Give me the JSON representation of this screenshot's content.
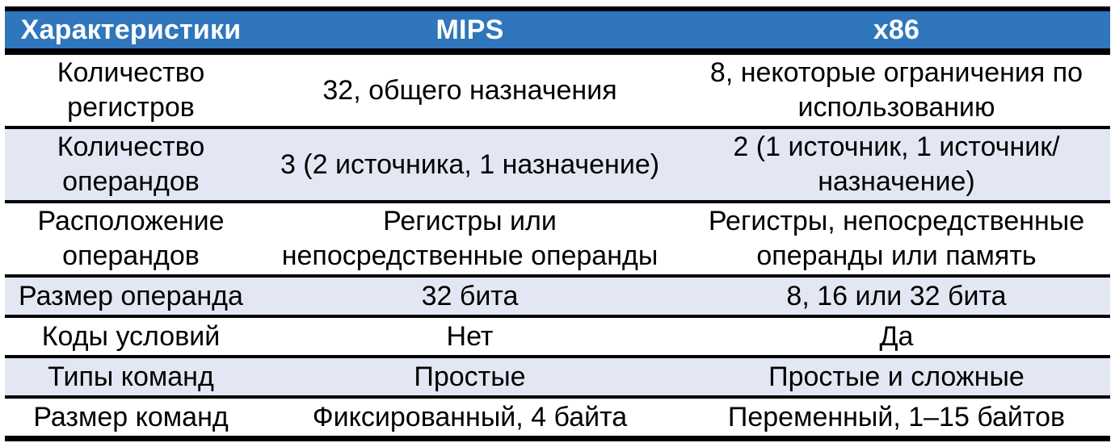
{
  "table": {
    "headers": [
      "Характеристики",
      "MIPS",
      "x86"
    ],
    "rows": [
      [
        "Количество регистров",
        "32, общего назначения",
        "8, некоторые ограничения по использованию"
      ],
      [
        "Количество операндов",
        "3 (2 источника, 1 назначение)",
        "2 (1 источник, 1 источник/назначение)"
      ],
      [
        "Расположение операндов",
        "Регистры или непосредственные операнды",
        "Регистры, непосредственные операнды или память"
      ],
      [
        "Размер операнда",
        "32 бита",
        "8, 16 или 32 бита"
      ],
      [
        "Коды условий",
        "Нет",
        "Да"
      ],
      [
        "Типы команд",
        "Простые",
        "Простые и сложные"
      ],
      [
        "Размер команд",
        "Фиксированный, 4 байта",
        "Переменный, 1–15 байтов"
      ]
    ]
  },
  "colors": {
    "header_bg": "#2F76BC",
    "header_text": "#FFFFFF",
    "alt_row_bg": "#E2E7F3",
    "border": "#000000"
  }
}
